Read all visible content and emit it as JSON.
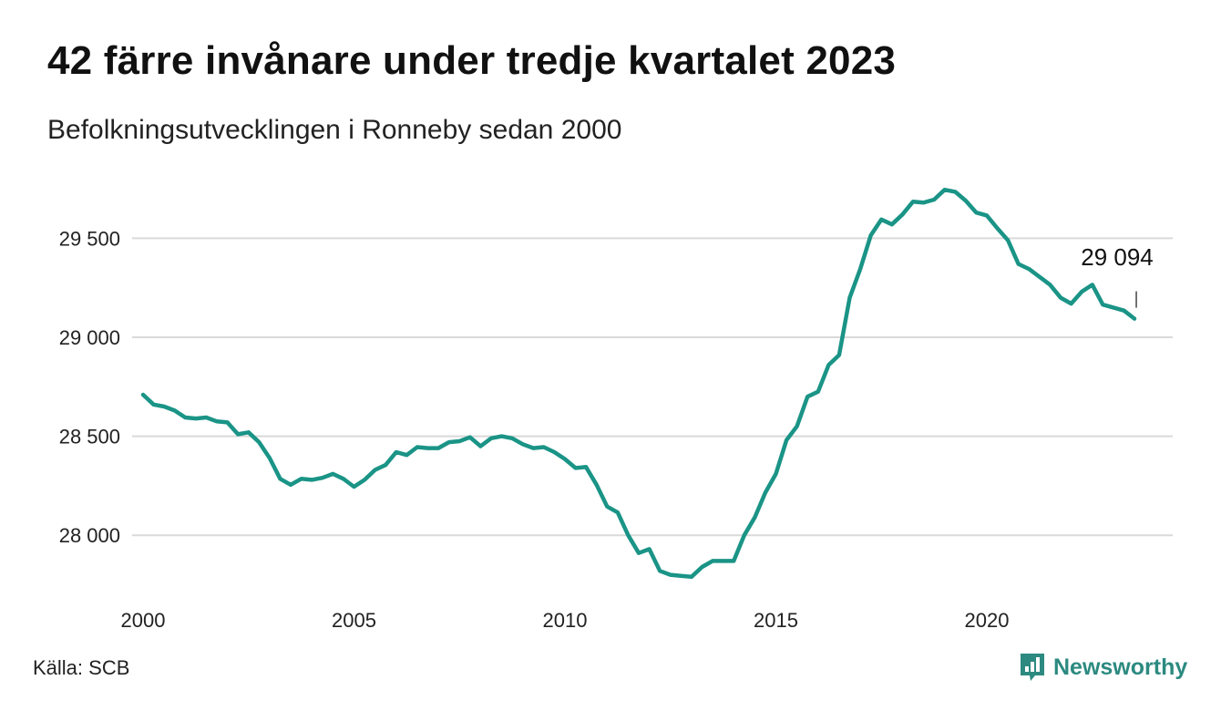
{
  "header": {
    "title": "42 färre invånare under tredje kvartalet 2023",
    "subtitle": "Befolkningsutvecklingen i Ronneby sedan 2000"
  },
  "footer": {
    "source": "Källa: SCB",
    "brand": "Newsworthy",
    "brand_icon": "bar-chart-bubble-icon"
  },
  "colors": {
    "line": "#1a9486",
    "grid": "#d9d9d9",
    "brand": "#2c8a80"
  },
  "chart_data": {
    "type": "line",
    "title": "42 färre invånare under tredje kvartalet 2023",
    "subtitle": "Befolkningsutvecklingen i Ronneby sedan 2000",
    "xlabel": "",
    "ylabel": "",
    "x_ticks": [
      2000,
      2005,
      2010,
      2015,
      2020
    ],
    "y_ticks": [
      28000,
      28500,
      29000,
      29500
    ],
    "y_tick_labels": [
      "28 000",
      "28 500",
      "29 000",
      "29 500"
    ],
    "x_tick_labels": [
      "2000",
      "2005",
      "2010",
      "2015",
      "2020"
    ],
    "xlim": [
      2000,
      2023.75
    ],
    "ylim": [
      27700,
      29800
    ],
    "grid": "horizontal",
    "annotation": {
      "x": 2023.5,
      "y": 29094,
      "text": "29 094"
    },
    "series": [
      {
        "x": [
          2000.0,
          2000.25,
          2000.5,
          2000.75,
          2001.0,
          2001.25,
          2001.5,
          2001.75,
          2002.0,
          2002.25,
          2002.5,
          2002.75,
          2003.0,
          2003.25,
          2003.5,
          2003.75,
          2004.0,
          2004.25,
          2004.5,
          2004.75,
          2005.0,
          2005.25,
          2005.5,
          2005.75,
          2006.0,
          2006.25,
          2006.5,
          2006.75,
          2007.0,
          2007.25,
          2007.5,
          2007.75,
          2008.0,
          2008.25,
          2008.5,
          2008.75,
          2009.0,
          2009.25,
          2009.5,
          2009.75,
          2010.0,
          2010.25,
          2010.5,
          2010.75,
          2011.0,
          2011.25,
          2011.5,
          2011.75,
          2012.0,
          2012.25,
          2012.5,
          2012.75,
          2013.0,
          2013.25,
          2013.5,
          2013.75,
          2014.0,
          2014.25,
          2014.5,
          2014.75,
          2015.0,
          2015.25,
          2015.5,
          2015.75,
          2016.0,
          2016.25,
          2016.5,
          2016.75,
          2017.0,
          2017.25,
          2017.5,
          2017.75,
          2018.0,
          2018.25,
          2018.5,
          2018.75,
          2019.0,
          2019.25,
          2019.5,
          2019.75,
          2020.0,
          2020.25,
          2020.5,
          2020.75,
          2021.0,
          2021.25,
          2021.5,
          2021.75,
          2022.0,
          2022.25,
          2022.5,
          2022.75,
          2023.0,
          2023.25,
          2023.5
        ],
        "values": [
          28710,
          28660,
          28650,
          28630,
          28595,
          28590,
          28595,
          28575,
          28570,
          28510,
          28520,
          28470,
          28390,
          28285,
          28255,
          28285,
          28280,
          28290,
          28310,
          28285,
          28245,
          28280,
          28330,
          28355,
          28420,
          28405,
          28445,
          28440,
          28440,
          28470,
          28475,
          28495,
          28450,
          28490,
          28500,
          28490,
          28460,
          28440,
          28445,
          28420,
          28385,
          28340,
          28345,
          28255,
          28145,
          28115,
          28000,
          27910,
          27930,
          27820,
          27800,
          27795,
          27790,
          27840,
          27870,
          27870,
          27870,
          28000,
          28090,
          28215,
          28310,
          28480,
          28550,
          28700,
          28725,
          28860,
          28910,
          29200,
          29345,
          29515,
          29595,
          29570,
          29620,
          29685,
          29680,
          29695,
          29745,
          29735,
          29690,
          29630,
          29615,
          29550,
          29490,
          29370,
          29345,
          29305,
          29265,
          29200,
          29170,
          29230,
          29265,
          29165,
          29150,
          29135,
          29094
        ]
      }
    ]
  }
}
